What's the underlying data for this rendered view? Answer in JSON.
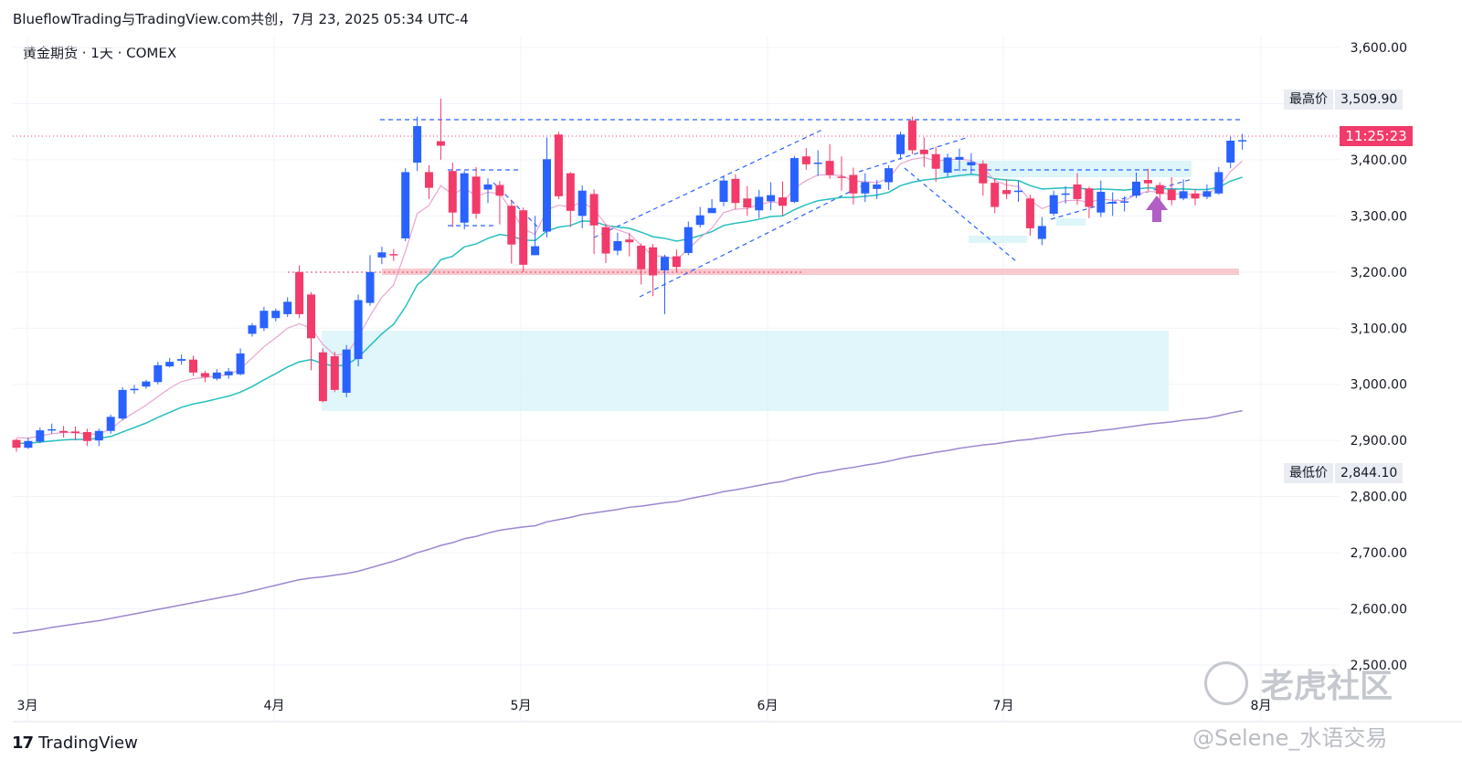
{
  "header": {
    "title": "BlueflowTrading与TradingView.com共创，7月 23, 2025 05:34 UTC-4"
  },
  "symbol": {
    "label": "黄金期货 · 1天 · COMEX"
  },
  "tags": {
    "high_label": "最高价",
    "high_value": "3,509.90",
    "low_label": "最低价",
    "low_value": "2,844.10",
    "now_value": "11:25:23"
  },
  "logo": {
    "text": "TradingView"
  },
  "watermark": {
    "text1": "老虎社区",
    "text2": "@Selene_水语交易"
  },
  "colors": {
    "up": "#2962ff",
    "down": "#f23b6a",
    "ema_fast": "#e9a4cf",
    "ema_mid": "#26bfbf",
    "ema_slow": "#9c87cf",
    "zone": "#d6f3f8",
    "support": "#f8c9cd",
    "arrow": "#b15fc7"
  },
  "chart_data": {
    "type": "candlestick",
    "title": "黄金期货 · 1天 · COMEX",
    "ylim": [
      2500,
      3600
    ],
    "y_ticks": [
      "3,600.00",
      "3,400.00",
      "3,300.00",
      "3,200.00",
      "3,100.00",
      "3,000.00",
      "2,900.00",
      "2,800.00",
      "2,700.00",
      "2,600.00",
      "2,500.00"
    ],
    "x_ticks": [
      "3月",
      "4月",
      "5月",
      "6月",
      "7月",
      "8月"
    ],
    "candles": [
      [
        2901,
        2887,
        2903,
        2880
      ],
      [
        2887,
        2899,
        2905,
        2885
      ],
      [
        2898,
        2918,
        2923,
        2895
      ],
      [
        2918,
        2920,
        2930,
        2912
      ],
      [
        2917,
        2914,
        2926,
        2905
      ],
      [
        2916,
        2913,
        2925,
        2900
      ],
      [
        2915,
        2899,
        2921,
        2890
      ],
      [
        2900,
        2917,
        2921,
        2890
      ],
      [
        2917,
        2942,
        2946,
        2912
      ],
      [
        2939,
        2990,
        2995,
        2936
      ],
      [
        2992,
        2992,
        2999,
        2983
      ],
      [
        2996,
        3005,
        3008,
        2992
      ],
      [
        3004,
        3034,
        3040,
        3000
      ],
      [
        3032,
        3040,
        3047,
        3030
      ],
      [
        3042,
        3045,
        3053,
        3035
      ],
      [
        3044,
        3021,
        3051,
        3015
      ],
      [
        3020,
        3013,
        3024,
        3004
      ],
      [
        3010,
        3021,
        3027,
        3007
      ],
      [
        3016,
        3023,
        3029,
        3010
      ],
      [
        3018,
        3055,
        3064,
        3016
      ],
      [
        3090,
        3105,
        3109,
        3085
      ],
      [
        3100,
        3131,
        3138,
        3095
      ],
      [
        3118,
        3131,
        3135,
        3112
      ],
      [
        3125,
        3147,
        3155,
        3120
      ],
      [
        3200,
        3125,
        3212,
        3118
      ],
      [
        3160,
        3082,
        3164,
        3025
      ],
      [
        3057,
        2970,
        3064,
        2968
      ],
      [
        3050,
        2990,
        3058,
        2986
      ],
      [
        2985,
        3062,
        3070,
        2977
      ],
      [
        3045,
        3150,
        3160,
        3032
      ],
      [
        3145,
        3200,
        3230,
        3140
      ],
      [
        3226,
        3235,
        3245,
        3214
      ],
      [
        3232,
        3231,
        3241,
        3220
      ],
      [
        3260,
        3378,
        3385,
        3255
      ],
      [
        3395,
        3460,
        3477,
        3380
      ],
      [
        3378,
        3350,
        3390,
        3330
      ],
      [
        3433,
        3425,
        3509,
        3400
      ],
      [
        3380,
        3306,
        3395,
        3280
      ],
      [
        3288,
        3376,
        3380,
        3276
      ],
      [
        3370,
        3304,
        3387,
        3295
      ],
      [
        3347,
        3356,
        3367,
        3323
      ],
      [
        3355,
        3336,
        3362,
        3285
      ],
      [
        3318,
        3249,
        3329,
        3215
      ],
      [
        3310,
        3213,
        3315,
        3200
      ],
      [
        3230,
        3246,
        3300,
        3230
      ],
      [
        3272,
        3401,
        3440,
        3262
      ],
      [
        3445,
        3335,
        3450,
        3330
      ],
      [
        3376,
        3309,
        3378,
        3280
      ],
      [
        3300,
        3345,
        3354,
        3278
      ],
      [
        3339,
        3283,
        3347,
        3232
      ],
      [
        3280,
        3233,
        3285,
        3216
      ],
      [
        3238,
        3255,
        3270,
        3230
      ],
      [
        3258,
        3253,
        3269,
        3228
      ],
      [
        3247,
        3205,
        3251,
        3178
      ],
      [
        3244,
        3194,
        3250,
        3157
      ],
      [
        3203,
        3227,
        3231,
        3125
      ],
      [
        3228,
        3209,
        3240,
        3199
      ],
      [
        3234,
        3280,
        3290,
        3230
      ],
      [
        3284,
        3301,
        3316,
        3279
      ],
      [
        3305,
        3314,
        3330,
        3307
      ],
      [
        3325,
        3363,
        3370,
        3317
      ],
      [
        3366,
        3323,
        3374,
        3312
      ],
      [
        3331,
        3315,
        3353,
        3300
      ],
      [
        3310,
        3334,
        3346,
        3296
      ],
      [
        3326,
        3337,
        3360,
        3310
      ],
      [
        3333,
        3318,
        3361,
        3300
      ],
      [
        3325,
        3403,
        3407,
        3323
      ],
      [
        3406,
        3392,
        3421,
        3382
      ],
      [
        3395,
        3395,
        3417,
        3371
      ],
      [
        3398,
        3373,
        3428,
        3366
      ],
      [
        3370,
        3369,
        3406,
        3345
      ],
      [
        3373,
        3340,
        3386,
        3320
      ],
      [
        3340,
        3360,
        3376,
        3325
      ],
      [
        3348,
        3356,
        3364,
        3330
      ],
      [
        3360,
        3385,
        3390,
        3346
      ],
      [
        3410,
        3445,
        3450,
        3400
      ],
      [
        3470,
        3417,
        3477,
        3410
      ],
      [
        3418,
        3410,
        3440,
        3387
      ],
      [
        3410,
        3384,
        3423,
        3361
      ],
      [
        3377,
        3404,
        3411,
        3370
      ],
      [
        3400,
        3405,
        3420,
        3380
      ],
      [
        3390,
        3396,
        3412,
        3374
      ],
      [
        3393,
        3358,
        3399,
        3336
      ],
      [
        3359,
        3316,
        3366,
        3305
      ],
      [
        3346,
        3339,
        3365,
        3330
      ],
      [
        3344,
        3345,
        3362,
        3325
      ],
      [
        3331,
        3278,
        3338,
        3265
      ],
      [
        3259,
        3282,
        3298,
        3248
      ],
      [
        3304,
        3337,
        3345,
        3300
      ],
      [
        3340,
        3340,
        3353,
        3322
      ],
      [
        3356,
        3330,
        3376,
        3320
      ],
      [
        3349,
        3316,
        3352,
        3296
      ],
      [
        3306,
        3343,
        3363,
        3298
      ],
      [
        3322,
        3325,
        3342,
        3300
      ],
      [
        3326,
        3326,
        3335,
        3308
      ],
      [
        3336,
        3361,
        3377,
        3332
      ],
      [
        3364,
        3358,
        3384,
        3345
      ],
      [
        3355,
        3339,
        3360,
        3328
      ],
      [
        3347,
        3328,
        3369,
        3319
      ],
      [
        3331,
        3344,
        3365,
        3328
      ],
      [
        3340,
        3331,
        3348,
        3319
      ],
      [
        3334,
        3344,
        3356,
        3330
      ],
      [
        3340,
        3378,
        3387,
        3338
      ],
      [
        3395,
        3434,
        3441,
        3385
      ],
      [
        3433,
        3435,
        3446,
        3418
      ]
    ],
    "series": [
      {
        "values": [
          2905,
          2904,
          2908,
          2912,
          2914,
          2914,
          2911,
          2912,
          2920,
          2937,
          2950,
          2963,
          2978,
          2993,
          3005,
          3010,
          3012,
          3015,
          3017,
          3027,
          3047,
          3067,
          3083,
          3100,
          3108,
          3100,
          3071,
          3052,
          3054,
          3084,
          3122,
          3155,
          3177,
          3237,
          3304,
          3319,
          3354,
          3338,
          3350,
          3335,
          3342,
          3340,
          3310,
          3277,
          3267,
          3311,
          3319,
          3316,
          3325,
          3311,
          3285,
          3275,
          3268,
          3247,
          3229,
          3228,
          3222,
          3241,
          3261,
          3278,
          3306,
          3312,
          3313,
          3320,
          3325,
          3323,
          3349,
          3363,
          3373,
          3373,
          3372,
          3362,
          3361,
          3359,
          3367,
          3393,
          3401,
          3404,
          3398,
          3400,
          3401,
          3399,
          3386,
          3363,
          3355,
          3352,
          3328,
          3313,
          3321,
          3327,
          3328,
          3324,
          3330,
          3328,
          3327,
          3338,
          3344,
          3342,
          3338,
          3340,
          3337,
          3339,
          3352,
          3379,
          3398
        ]
      },
      {
        "values": [
          2895,
          2895,
          2897,
          2899,
          2901,
          2902,
          2902,
          2904,
          2907,
          2915,
          2923,
          2931,
          2941,
          2950,
          2959,
          2965,
          2969,
          2974,
          2979,
          2986,
          2996,
          3008,
          3019,
          3031,
          3040,
          3044,
          3037,
          3032,
          3035,
          3048,
          3069,
          3090,
          3107,
          3138,
          3177,
          3195,
          3222,
          3228,
          3245,
          3250,
          3260,
          3267,
          3264,
          3257,
          3256,
          3273,
          3280,
          3283,
          3291,
          3290,
          3283,
          3280,
          3278,
          3271,
          3263,
          3260,
          3255,
          3259,
          3265,
          3272,
          3283,
          3287,
          3290,
          3294,
          3299,
          3300,
          3311,
          3320,
          3327,
          3330,
          3333,
          3333,
          3335,
          3337,
          3342,
          3354,
          3360,
          3364,
          3366,
          3369,
          3372,
          3374,
          3372,
          3366,
          3364,
          3363,
          3354,
          3348,
          3349,
          3350,
          3350,
          3347,
          3348,
          3347,
          3346,
          3348,
          3350,
          3349,
          3348,
          3348,
          3347,
          3347,
          3351,
          3362,
          3369
        ]
      },
      {
        "values": [
          2557,
          2560,
          2563,
          2567,
          2570,
          2573,
          2576,
          2579,
          2583,
          2587,
          2591,
          2595,
          2599,
          2603,
          2607,
          2611,
          2615,
          2619,
          2623,
          2627,
          2632,
          2637,
          2642,
          2647,
          2652,
          2655,
          2657,
          2660,
          2663,
          2667,
          2673,
          2679,
          2685,
          2692,
          2700,
          2706,
          2713,
          2718,
          2725,
          2729,
          2735,
          2740,
          2743,
          2746,
          2748,
          2755,
          2759,
          2763,
          2768,
          2771,
          2774,
          2777,
          2781,
          2783,
          2786,
          2789,
          2791,
          2796,
          2800,
          2804,
          2809,
          2812,
          2816,
          2820,
          2824,
          2827,
          2833,
          2837,
          2842,
          2845,
          2849,
          2852,
          2856,
          2859,
          2863,
          2868,
          2872,
          2875,
          2879,
          2882,
          2886,
          2889,
          2892,
          2894,
          2897,
          2900,
          2902,
          2905,
          2908,
          2911,
          2913,
          2915,
          2918,
          2920,
          2923,
          2926,
          2929,
          2931,
          2933,
          2936,
          2938,
          2940,
          2944,
          2949,
          2953
        ]
      }
    ]
  }
}
